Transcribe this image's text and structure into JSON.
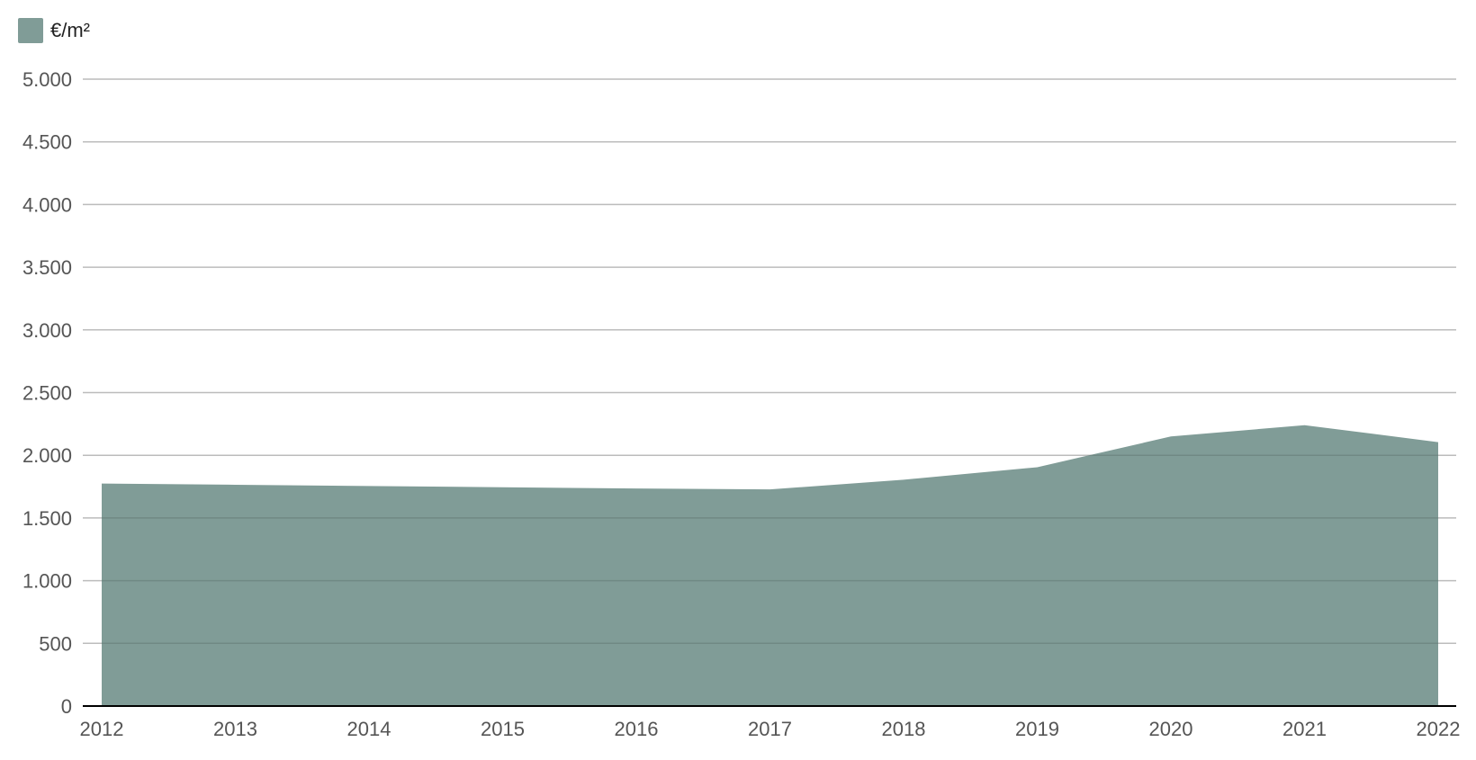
{
  "chart_data": {
    "type": "area",
    "title": "",
    "xlabel": "",
    "ylabel": "",
    "x": [
      "2012",
      "2013",
      "2014",
      "2015",
      "2016",
      "2017",
      "2018",
      "2019",
      "2020",
      "2021",
      "2022"
    ],
    "series": [
      {
        "name": "€/m²",
        "color": "#809C97",
        "values": [
          1775,
          1765,
          1755,
          1745,
          1735,
          1728,
          1805,
          1905,
          2150,
          2240,
          2105
        ]
      }
    ],
    "ylim": [
      0,
      5000
    ],
    "yticks": [
      0,
      500,
      1000,
      1500,
      2000,
      2500,
      3000,
      3500,
      4000,
      4500,
      5000
    ],
    "ytick_labels": [
      "0",
      "500",
      "1.000",
      "1.500",
      "2.000",
      "2.500",
      "3.000",
      "3.500",
      "4.000",
      "4.500",
      "5.000"
    ],
    "grid": true,
    "legend_position": "top-left"
  },
  "colors": {
    "series": "#809C97",
    "grid": "#d6d6d6",
    "axis": "#000000",
    "tick_text": "#555555"
  }
}
